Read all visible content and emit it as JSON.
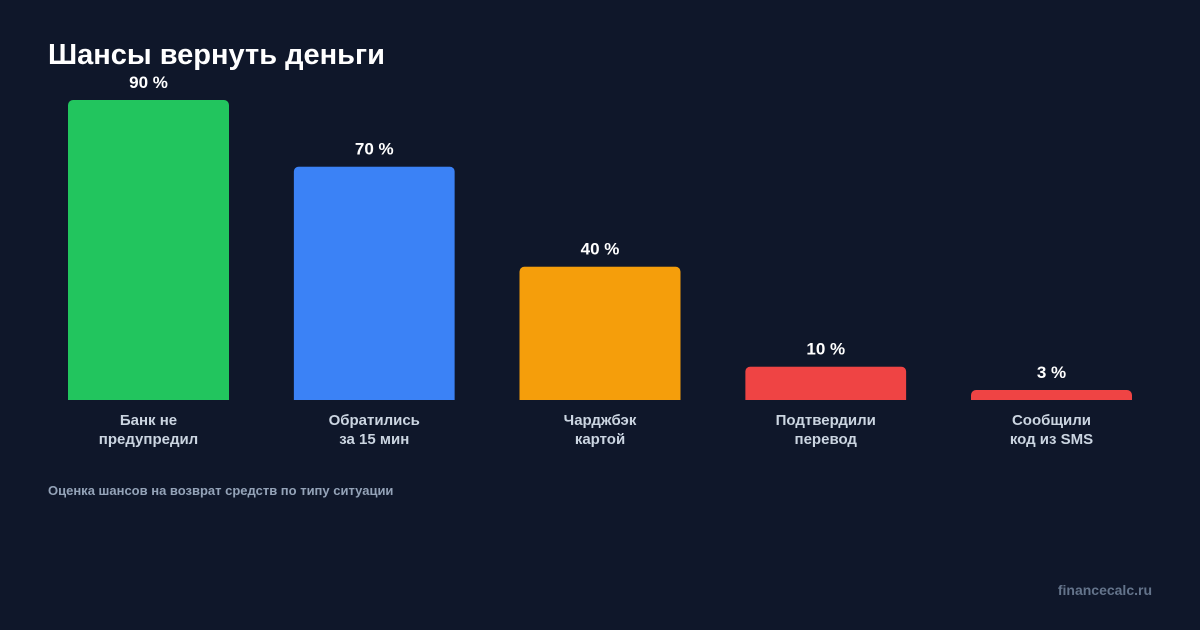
{
  "chart_data": {
    "type": "bar",
    "title": "Шансы вернуть деньги",
    "subtitle": "Оценка шансов на возврат средств по типу ситуации",
    "categories": [
      [
        "Банк не",
        "предупредил"
      ],
      [
        "Обратились",
        "за 15 мин"
      ],
      [
        "Чарджбэк",
        "картой"
      ],
      [
        "Подтвердили",
        "перевод"
      ],
      [
        "Сообщили",
        "код из SMS"
      ]
    ],
    "values": [
      90,
      70,
      40,
      10,
      3
    ],
    "value_labels": [
      "90 %",
      "70 %",
      "40 %",
      "10 %",
      "3 %"
    ],
    "colors": [
      "#22c55e",
      "#3b82f6",
      "#f59e0b",
      "#ef4444",
      "#ef4444"
    ],
    "xlabel": "",
    "ylabel": "",
    "ylim": [
      0,
      90
    ],
    "grid": false,
    "legend": "none"
  },
  "footer": {
    "watermark": "financecalc.ru"
  },
  "colors": {
    "background": "#0f172a",
    "title": "#ffffff",
    "value_label": "#ffffff",
    "category_label": "#cbd5e1",
    "subtitle": "#94a3b8",
    "watermark": "#64748b"
  }
}
